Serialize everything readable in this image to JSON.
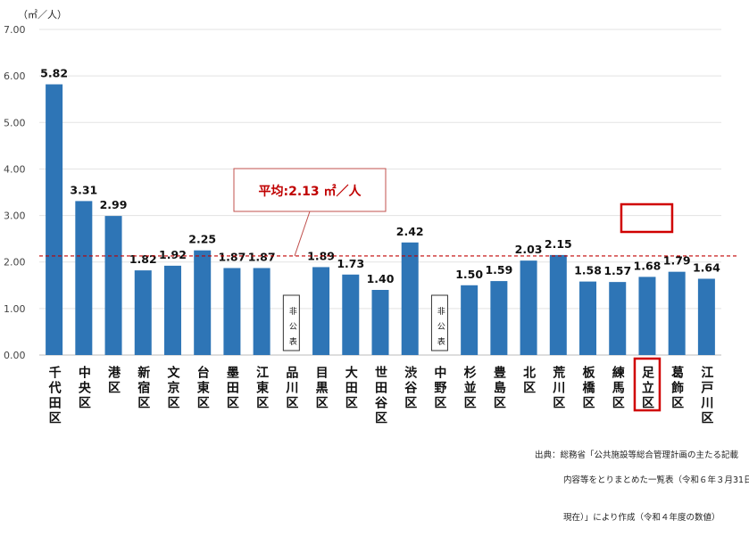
{
  "chart_data": {
    "type": "bar",
    "unit_label": "（㎡／人）",
    "ylim": [
      0,
      7
    ],
    "yticks": [
      "0.00",
      "1.00",
      "2.00",
      "3.00",
      "4.00",
      "5.00",
      "6.00",
      "7.00"
    ],
    "grid": true,
    "bar_color": "#2E75B6",
    "categories": [
      "千代田区",
      "中央区",
      "港区",
      "新宿区",
      "文京区",
      "台東区",
      "墨田区",
      "江東区",
      "品川区",
      "目黒区",
      "大田区",
      "世田谷区",
      "渋谷区",
      "中野区",
      "杉並区",
      "豊島区",
      "北区",
      "荒川区",
      "板橋区",
      "練馬区",
      "足立区",
      "葛飾区",
      "江戸川区"
    ],
    "values": [
      5.82,
      3.31,
      2.99,
      1.82,
      1.92,
      2.25,
      1.87,
      1.87,
      null,
      1.89,
      1.73,
      1.4,
      2.42,
      null,
      1.5,
      1.59,
      2.03,
      2.15,
      1.58,
      1.57,
      1.68,
      1.79,
      1.64
    ],
    "data_labels": [
      "5.82",
      "3.31",
      "2.99",
      "1.82",
      "1.92",
      "2.25",
      "1.87",
      "1.87",
      "非公表",
      "1.89",
      "1.73",
      "1.40",
      "2.42",
      "非公表",
      "1.50",
      "1.59",
      "2.03",
      "2.15",
      "1.58",
      "1.57",
      "1.68",
      "1.79",
      "1.64"
    ],
    "undisclosed_label": "非公表",
    "average": {
      "value": 2.13,
      "label": "平均:2.13 ㎡／人",
      "color": "#C00000"
    },
    "highlight": {
      "category": "足立区",
      "color": "#D00000"
    }
  },
  "source": {
    "line1": "出典：総務省「公共施設等総合管理計画の主たる記載",
    "line2": "内容等をとりまとめた一覧表（令和６年３月31日",
    "line3": "現在）」により作成（令和４年度の数値）"
  }
}
